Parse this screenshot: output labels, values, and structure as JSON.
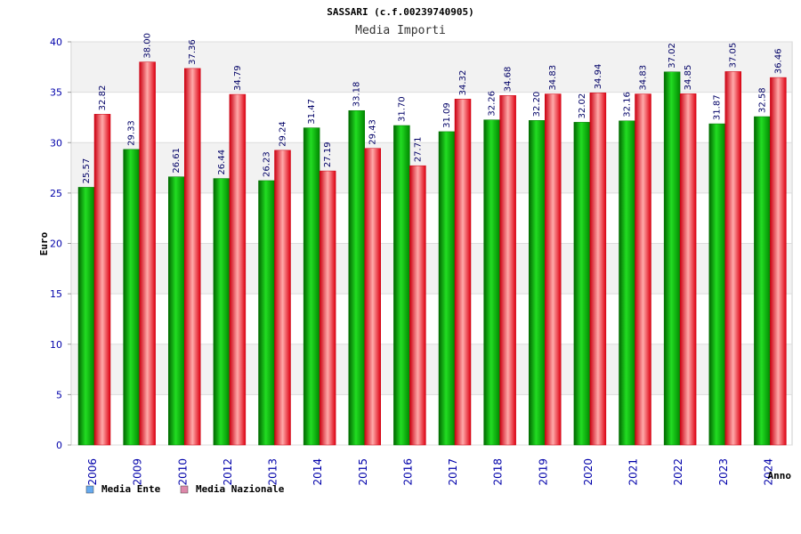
{
  "chart_data": {
    "type": "bar",
    "title": "SASSARI (c.f.00239740905)",
    "subtitle": "Media Importi",
    "xlabel": "Anno",
    "ylabel": "Euro",
    "ylim": [
      0,
      40
    ],
    "yticks": [
      0,
      5,
      10,
      15,
      20,
      25,
      30,
      35,
      40
    ],
    "grid": true,
    "legend_position": "bottom-left",
    "categories": [
      "2006",
      "2009",
      "2010",
      "2012",
      "2013",
      "2014",
      "2015",
      "2016",
      "2017",
      "2018",
      "2019",
      "2020",
      "2021",
      "2022",
      "2023",
      "2024"
    ],
    "series": [
      {
        "name": "Media Ente",
        "legend_color": "#66aaee",
        "bar_color": "#00aa00",
        "values": [
          25.57,
          29.33,
          26.61,
          26.44,
          26.23,
          31.47,
          33.18,
          31.7,
          31.09,
          32.26,
          32.2,
          32.02,
          32.16,
          37.02,
          31.87,
          32.58
        ],
        "labels": [
          "25.57",
          "29.33",
          "26.61",
          "26.44",
          "26.23",
          "31.47",
          "33.18",
          "31.70",
          "31.09",
          "32.26",
          "32.20",
          "32.02",
          "32.16",
          "37.02",
          "31.87",
          "32.58"
        ]
      },
      {
        "name": "Media Nazionale",
        "legend_color": "#dd88aa",
        "bar_color": "#ee2233",
        "values": [
          32.82,
          38.0,
          37.36,
          34.79,
          29.24,
          27.19,
          29.43,
          27.71,
          34.32,
          34.68,
          34.83,
          34.94,
          34.83,
          34.85,
          37.05,
          36.46
        ],
        "labels": [
          "32.82",
          "38.00",
          "37.36",
          "34.79",
          "29.24",
          "27.19",
          "29.43",
          "27.71",
          "34.32",
          "34.68",
          "34.83",
          "34.94",
          "34.83",
          "34.85",
          "37.05",
          "36.46"
        ]
      }
    ]
  }
}
